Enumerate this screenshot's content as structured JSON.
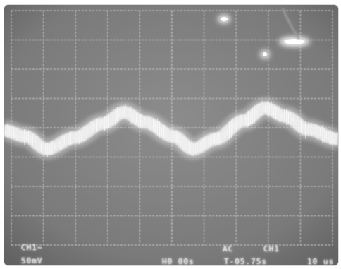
{
  "colors": {
    "screen_bg": "#7a7a7a",
    "grid": "#b4b4b4",
    "trace": "#f4f4f4",
    "text": "#e8e8e8"
  },
  "scope": {
    "ch1_label": "CH1~",
    "ch1_scale": "50mV",
    "horizontal": "H0 00s",
    "coupling": "AC",
    "trigger_source": "CH1",
    "trigger_level": "T-05.75s",
    "sweep": "10 us"
  }
}
